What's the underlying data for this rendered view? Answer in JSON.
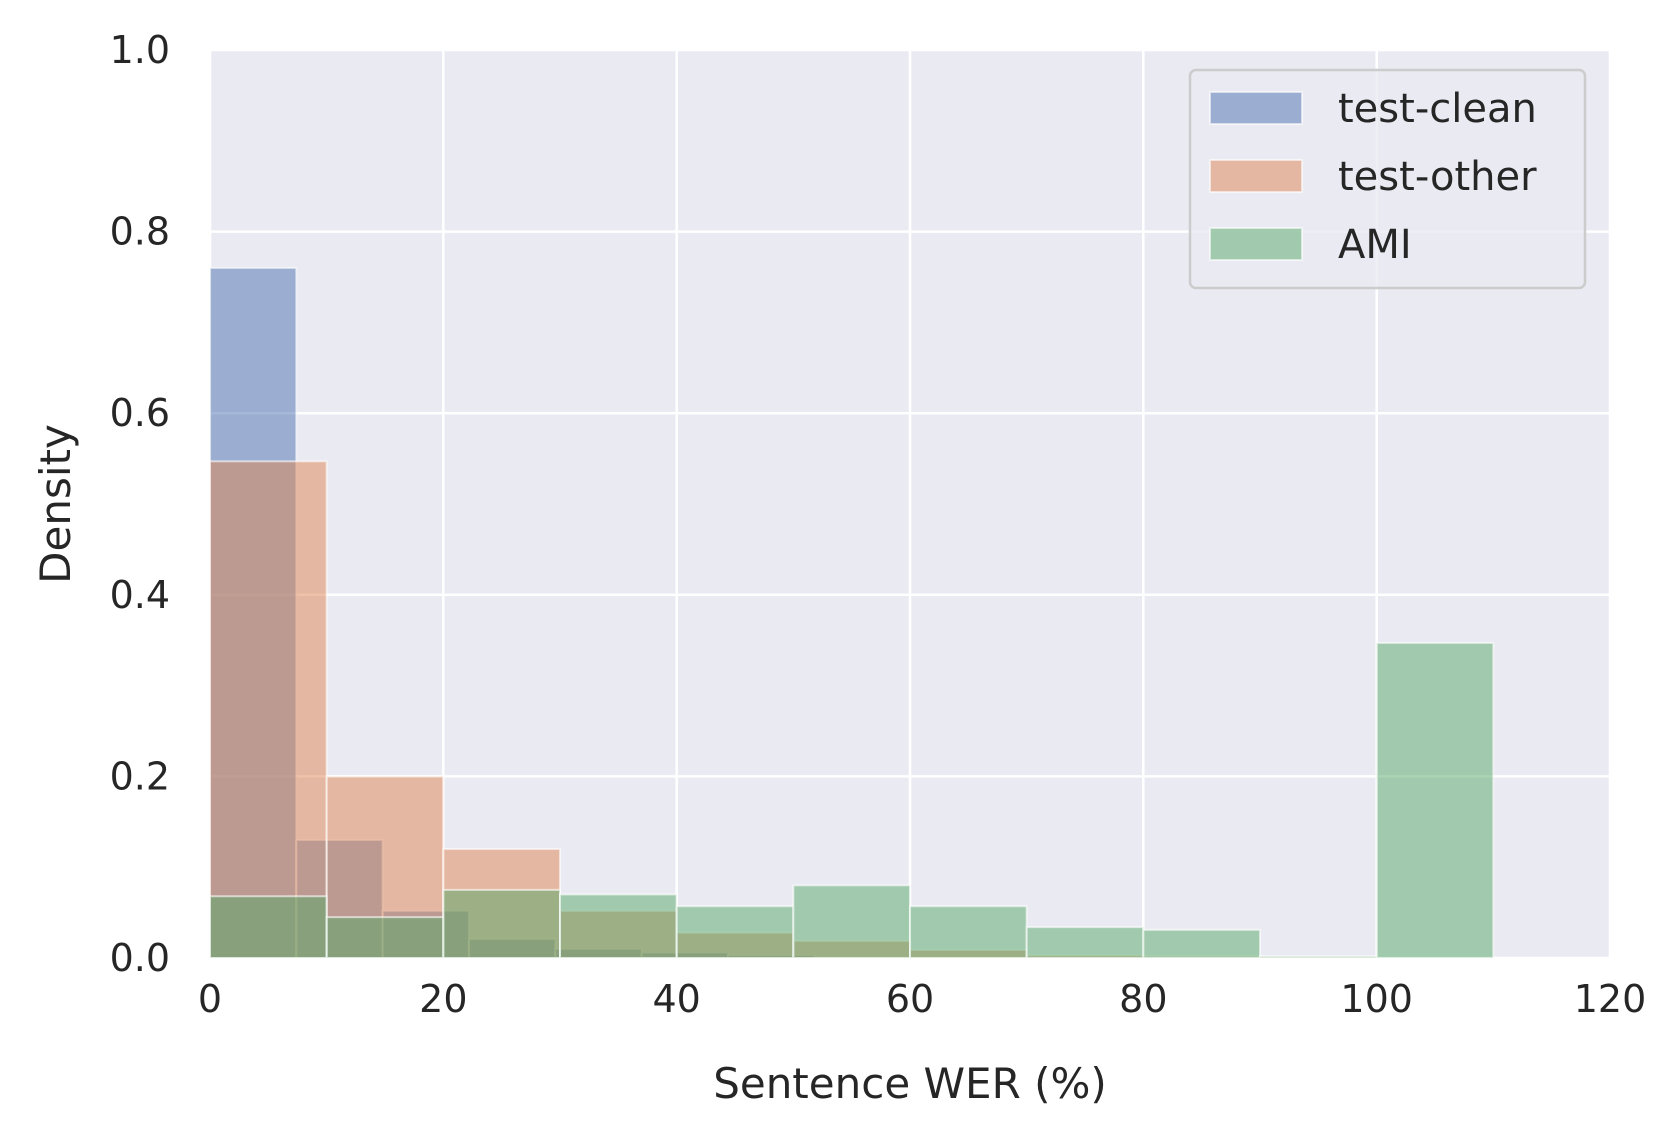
{
  "chart_data": {
    "type": "bar",
    "xlabel": "Sentence WER (%)",
    "ylabel": "Density",
    "xlim": [
      0,
      120
    ],
    "ylim": [
      0,
      1.0
    ],
    "xticks": [
      "0",
      "20",
      "40",
      "60",
      "80",
      "100",
      "120"
    ],
    "yticks": [
      "0.0",
      "0.2",
      "0.4",
      "0.6",
      "0.8",
      "1.0"
    ],
    "grid": true,
    "legend_position": "top-right",
    "series": [
      {
        "name": "test-clean",
        "color": "#4c72b0",
        "bins": [
          {
            "x0": 0,
            "x1": 7.4,
            "y": 0.76
          },
          {
            "x0": 7.4,
            "x1": 14.8,
            "y": 0.13
          },
          {
            "x0": 14.8,
            "x1": 22.2,
            "y": 0.052
          },
          {
            "x0": 22.2,
            "x1": 29.6,
            "y": 0.021
          },
          {
            "x0": 29.6,
            "x1": 37.0,
            "y": 0.01
          },
          {
            "x0": 37.0,
            "x1": 44.4,
            "y": 0.006
          },
          {
            "x0": 44.4,
            "x1": 51.8,
            "y": 0.003
          }
        ]
      },
      {
        "name": "test-other",
        "color": "#dd8452",
        "bins": [
          {
            "x0": 0,
            "x1": 10,
            "y": 0.547
          },
          {
            "x0": 10,
            "x1": 20,
            "y": 0.2
          },
          {
            "x0": 20,
            "x1": 30,
            "y": 0.12
          },
          {
            "x0": 30,
            "x1": 40,
            "y": 0.052
          },
          {
            "x0": 40,
            "x1": 50,
            "y": 0.028
          },
          {
            "x0": 50,
            "x1": 60,
            "y": 0.019
          },
          {
            "x0": 60,
            "x1": 70,
            "y": 0.009
          },
          {
            "x0": 70,
            "x1": 80,
            "y": 0.003
          },
          {
            "x0": 80,
            "x1": 90,
            "y": 0.002
          },
          {
            "x0": 90,
            "x1": 100,
            "y": 0.001
          }
        ]
      },
      {
        "name": "AMI",
        "color": "#55a868",
        "bins": [
          {
            "x0": 0,
            "x1": 10,
            "y": 0.068
          },
          {
            "x0": 10,
            "x1": 20,
            "y": 0.045
          },
          {
            "x0": 20,
            "x1": 30,
            "y": 0.075
          },
          {
            "x0": 30,
            "x1": 40,
            "y": 0.07
          },
          {
            "x0": 40,
            "x1": 50,
            "y": 0.057
          },
          {
            "x0": 50,
            "x1": 60,
            "y": 0.08
          },
          {
            "x0": 60,
            "x1": 70,
            "y": 0.057
          },
          {
            "x0": 70,
            "x1": 80,
            "y": 0.034
          },
          {
            "x0": 80,
            "x1": 90,
            "y": 0.031
          },
          {
            "x0": 90,
            "x1": 100,
            "y": 0.002
          },
          {
            "x0": 100,
            "x1": 110,
            "y": 0.347
          }
        ]
      }
    ]
  }
}
